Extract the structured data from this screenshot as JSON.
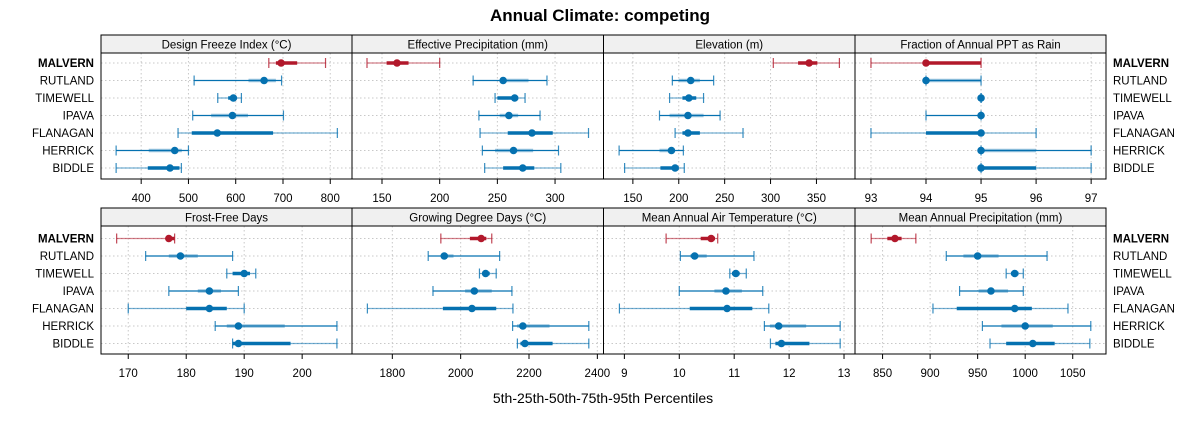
{
  "chart_data": {
    "type": "dotplot-percentile",
    "title": "Annual Climate: competing",
    "xlabel": "5th-25th-50th-75th-95th Percentiles",
    "grid": true,
    "row_labels": [
      "MALVERN",
      "RUTLAND",
      "TIMEWELL",
      "IPAVA",
      "FLANAGAN",
      "HERRICK",
      "BIDDLE"
    ],
    "highlight_row": "MALVERN",
    "colors": {
      "highlight": "#b2182b",
      "other": "#0571b0",
      "grid": "#c8c8c8",
      "strip": "#f0f0f0"
    },
    "series_keys": [
      "p5",
      "p25",
      "p50",
      "p75",
      "p95"
    ],
    "panels": [
      {
        "name": "Design Freeze Index (°C)",
        "xlim": [
          315,
          846
        ],
        "ticks": [
          400,
          500,
          600,
          700,
          800
        ],
        "tick_labels": [
          "400",
          "500",
          "600",
          "700",
          "800"
        ],
        "rows": [
          {
            "label": "MALVERN",
            "p5": 670,
            "p25": 685,
            "p50": 696,
            "p75": 730,
            "p95": 790
          },
          {
            "label": "RUTLAND",
            "p5": 512,
            "p25": 627,
            "p50": 660,
            "p75": 685,
            "p95": 697
          },
          {
            "label": "TIMEWELL",
            "p5": 562,
            "p25": 584,
            "p50": 595,
            "p75": 602,
            "p95": 612
          },
          {
            "label": "IPAVA",
            "p5": 509,
            "p25": 548,
            "p50": 593,
            "p75": 626,
            "p95": 701
          },
          {
            "label": "FLANAGAN",
            "p5": 478,
            "p25": 507,
            "p50": 561,
            "p75": 679,
            "p95": 815
          },
          {
            "label": "HERRICK",
            "p5": 347,
            "p25": 416,
            "p50": 471,
            "p75": 486,
            "p95": 500
          },
          {
            "label": "BIDDLE",
            "p5": 347,
            "p25": 414,
            "p50": 461,
            "p75": 481,
            "p95": 485
          }
        ]
      },
      {
        "name": "Effective Precipitation (mm)",
        "xlim": [
          124,
          342
        ],
        "ticks": [
          150,
          200,
          250,
          300
        ],
        "tick_labels": [
          "150",
          "200",
          "250",
          "300"
        ],
        "rows": [
          {
            "label": "MALVERN",
            "p5": 137,
            "p25": 154,
            "p50": 163,
            "p75": 173,
            "p95": 200
          },
          {
            "label": "RUTLAND",
            "p5": 229,
            "p25": 254,
            "p50": 255,
            "p75": 277,
            "p95": 293
          },
          {
            "label": "TIMEWELL",
            "p5": 248,
            "p25": 250,
            "p50": 265,
            "p75": 268,
            "p95": 274
          },
          {
            "label": "IPAVA",
            "p5": 234,
            "p25": 252,
            "p50": 260,
            "p75": 268,
            "p95": 287
          },
          {
            "label": "FLANAGAN",
            "p5": 235,
            "p25": 259,
            "p50": 280,
            "p75": 298,
            "p95": 329
          },
          {
            "label": "HERRICK",
            "p5": 237,
            "p25": 248,
            "p50": 264,
            "p75": 281,
            "p95": 303
          },
          {
            "label": "BIDDLE",
            "p5": 239,
            "p25": 255,
            "p50": 272,
            "p75": 282,
            "p95": 305
          }
        ]
      },
      {
        "name": "Elevation (m)",
        "xlim": [
          118,
          392
        ],
        "ticks": [
          150,
          200,
          250,
          300,
          350
        ],
        "tick_labels": [
          "150",
          "200",
          "250",
          "300",
          "350"
        ],
        "rows": [
          {
            "label": "MALVERN",
            "p5": 303,
            "p25": 330,
            "p50": 342,
            "p75": 351,
            "p95": 375
          },
          {
            "label": "RUTLAND",
            "p5": 193,
            "p25": 200,
            "p50": 213,
            "p75": 223,
            "p95": 238
          },
          {
            "label": "TIMEWELL",
            "p5": 190,
            "p25": 204,
            "p50": 211,
            "p75": 219,
            "p95": 227
          },
          {
            "label": "IPAVA",
            "p5": 179,
            "p25": 190,
            "p50": 210,
            "p75": 227,
            "p95": 245
          },
          {
            "label": "FLANAGAN",
            "p5": 196,
            "p25": 204,
            "p50": 210,
            "p75": 223,
            "p95": 270
          },
          {
            "label": "HERRICK",
            "p5": 135,
            "p25": 179,
            "p50": 192,
            "p75": 196,
            "p95": 205
          },
          {
            "label": "BIDDLE",
            "p5": 141,
            "p25": 180,
            "p50": 196,
            "p75": 200,
            "p95": 206
          }
        ]
      },
      {
        "name": "Fraction of Annual PPT as Rain",
        "xlim": [
          92.71,
          97.27
        ],
        "ticks": [
          93,
          94,
          95,
          96,
          97
        ],
        "tick_labels": [
          "93",
          "94",
          "95",
          "96",
          "97"
        ],
        "rows": [
          {
            "label": "MALVERN",
            "p5": 93,
            "p25": 94,
            "p50": 94,
            "p75": 95,
            "p95": 95
          },
          {
            "label": "RUTLAND",
            "p5": 94,
            "p25": 94,
            "p50": 94,
            "p75": 95,
            "p95": 95
          },
          {
            "label": "TIMEWELL",
            "p5": 95,
            "p25": 95,
            "p50": 95,
            "p75": 95,
            "p95": 95
          },
          {
            "label": "IPAVA",
            "p5": 94,
            "p25": 95,
            "p50": 95,
            "p75": 95,
            "p95": 95
          },
          {
            "label": "FLANAGAN",
            "p5": 93,
            "p25": 94,
            "p50": 95,
            "p75": 95,
            "p95": 96
          },
          {
            "label": "HERRICK",
            "p5": 95,
            "p25": 95,
            "p50": 95,
            "p75": 96,
            "p95": 97
          },
          {
            "label": "BIDDLE",
            "p5": 95,
            "p25": 95,
            "p50": 95,
            "p75": 96,
            "p95": 97
          }
        ]
      },
      {
        "name": "Frost-Free Days",
        "xlim": [
          165.3,
          208.6
        ],
        "ticks": [
          170,
          180,
          190,
          200
        ],
        "tick_labels": [
          "170",
          "180",
          "190",
          "200"
        ],
        "rows": [
          {
            "label": "MALVERN",
            "p5": 168,
            "p25": 177,
            "p50": 177,
            "p75": 178,
            "p95": 178
          },
          {
            "label": "RUTLAND",
            "p5": 173,
            "p25": 177,
            "p50": 179,
            "p75": 182,
            "p95": 188
          },
          {
            "label": "TIMEWELL",
            "p5": 187,
            "p25": 188,
            "p50": 190,
            "p75": 191,
            "p95": 192
          },
          {
            "label": "IPAVA",
            "p5": 177,
            "p25": 182,
            "p50": 184,
            "p75": 186,
            "p95": 189
          },
          {
            "label": "FLANAGAN",
            "p5": 170,
            "p25": 180,
            "p50": 184,
            "p75": 187,
            "p95": 190
          },
          {
            "label": "HERRICK",
            "p5": 185,
            "p25": 187,
            "p50": 189,
            "p75": 197,
            "p95": 206
          },
          {
            "label": "BIDDLE",
            "p5": 188,
            "p25": 188,
            "p50": 189,
            "p75": 198,
            "p95": 206
          }
        ]
      },
      {
        "name": "Growing Degree Days (°C)",
        "xlim": [
          1682,
          2418
        ],
        "ticks": [
          1800,
          2000,
          2200,
          2400
        ],
        "tick_labels": [
          "1800",
          "2000",
          "2200",
          "2400"
        ],
        "rows": [
          {
            "label": "MALVERN",
            "p5": 1942,
            "p25": 2027,
            "p50": 2060,
            "p75": 2075,
            "p95": 2091
          },
          {
            "label": "RUTLAND",
            "p5": 1905,
            "p25": 1947,
            "p50": 1952,
            "p75": 1979,
            "p95": 2114
          },
          {
            "label": "TIMEWELL",
            "p5": 2055,
            "p25": 2065,
            "p50": 2073,
            "p75": 2085,
            "p95": 2104
          },
          {
            "label": "IPAVA",
            "p5": 1919,
            "p25": 2013,
            "p50": 2040,
            "p75": 2091,
            "p95": 2150
          },
          {
            "label": "FLANAGAN",
            "p5": 1727,
            "p25": 1948,
            "p50": 2033,
            "p75": 2104,
            "p95": 2153
          },
          {
            "label": "HERRICK",
            "p5": 2152,
            "p25": 2165,
            "p50": 2182,
            "p75": 2260,
            "p95": 2375
          },
          {
            "label": "BIDDLE",
            "p5": 2166,
            "p25": 2175,
            "p50": 2188,
            "p75": 2269,
            "p95": 2375
          }
        ]
      },
      {
        "name": "Mean Annual Air Temperature (°C)",
        "xlim": [
          8.62,
          13.2
        ],
        "ticks": [
          9,
          10,
          11,
          12,
          13
        ],
        "tick_labels": [
          "9",
          "10",
          "11",
          "12",
          "13"
        ],
        "rows": [
          {
            "label": "MALVERN",
            "p5": 9.76,
            "p25": 10.39,
            "p50": 10.58,
            "p75": 10.65,
            "p95": 10.7
          },
          {
            "label": "RUTLAND",
            "p5": 10.02,
            "p25": 10.2,
            "p50": 10.28,
            "p75": 10.5,
            "p95": 11.36
          },
          {
            "label": "TIMEWELL",
            "p5": 10.92,
            "p25": 10.96,
            "p50": 11.03,
            "p75": 11.1,
            "p95": 11.22
          },
          {
            "label": "IPAVA",
            "p5": 10.0,
            "p25": 10.64,
            "p50": 10.85,
            "p75": 11.14,
            "p95": 11.52
          },
          {
            "label": "FLANAGAN",
            "p5": 8.91,
            "p25": 10.19,
            "p50": 10.87,
            "p75": 11.33,
            "p95": 11.63
          },
          {
            "label": "HERRICK",
            "p5": 11.55,
            "p25": 11.65,
            "p50": 11.81,
            "p75": 12.31,
            "p95": 12.93
          },
          {
            "label": "BIDDLE",
            "p5": 11.66,
            "p25": 11.75,
            "p50": 11.86,
            "p75": 12.37,
            "p95": 12.93
          }
        ]
      },
      {
        "name": "Mean Annual Precipitation (mm)",
        "xlim": [
          821,
          1085
        ],
        "ticks": [
          850,
          900,
          950,
          1000,
          1050
        ],
        "tick_labels": [
          "850",
          "900",
          "950",
          "1000",
          "1050"
        ],
        "rows": [
          {
            "label": "MALVERN",
            "p5": 838,
            "p25": 855,
            "p50": 863,
            "p75": 870,
            "p95": 885
          },
          {
            "label": "RUTLAND",
            "p5": 917,
            "p25": 935,
            "p50": 950,
            "p75": 972,
            "p95": 1023
          },
          {
            "label": "TIMEWELL",
            "p5": 980,
            "p25": 985,
            "p50": 989,
            "p75": 993,
            "p95": 998
          },
          {
            "label": "IPAVA",
            "p5": 931,
            "p25": 951,
            "p50": 964,
            "p75": 982,
            "p95": 998
          },
          {
            "label": "FLANAGAN",
            "p5": 903,
            "p25": 928,
            "p50": 989,
            "p75": 1007,
            "p95": 1045
          },
          {
            "label": "HERRICK",
            "p5": 955,
            "p25": 975,
            "p50": 1000,
            "p75": 1029,
            "p95": 1069
          },
          {
            "label": "BIDDLE",
            "p5": 963,
            "p25": 980,
            "p50": 1008,
            "p75": 1031,
            "p95": 1068
          }
        ]
      }
    ]
  }
}
